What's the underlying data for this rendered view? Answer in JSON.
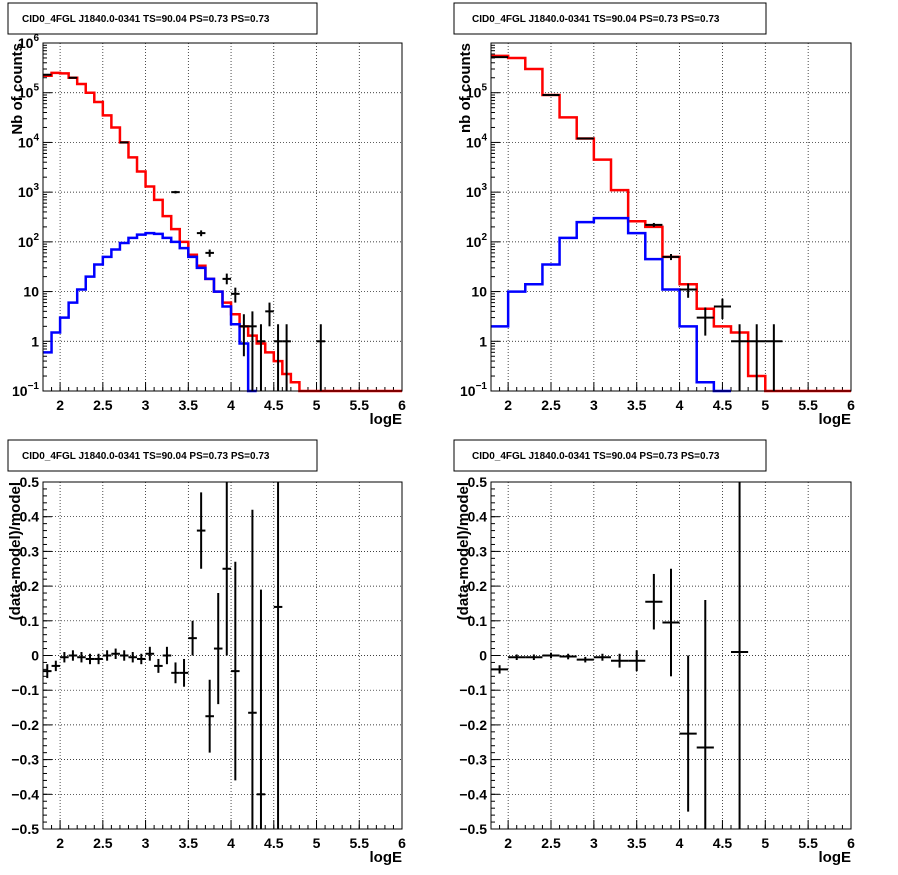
{
  "chart_data": [
    {
      "type": "line",
      "title": "CID0_4FGL J1840.0-0341 TS=90.04 PS=0.73 PS=0.73",
      "xlabel": "logE",
      "ylabel": "Nb of counts",
      "xlim": [
        1.8,
        6
      ],
      "ylim": [
        0.1,
        1000000
      ],
      "yscale": "log",
      "grid": true,
      "xticks": [
        "2",
        "2.5",
        "3",
        "3.5",
        "4",
        "4.5",
        "5",
        "5.5",
        "6"
      ],
      "yticks": [
        {
          "v": 0.1,
          "m": "10",
          "e": "−1"
        },
        {
          "v": 1,
          "m": "1",
          "e": ""
        },
        {
          "v": 10,
          "m": "10",
          "e": ""
        },
        {
          "v": 100,
          "m": "10",
          "e": "2"
        },
        {
          "v": 1000,
          "m": "10",
          "e": "3"
        },
        {
          "v": 10000,
          "m": "10",
          "e": "4"
        },
        {
          "v": 100000,
          "m": "10",
          "e": "5"
        },
        {
          "v": 1000000,
          "m": "10",
          "e": "6"
        }
      ],
      "bin_width": 0.1,
      "series": [
        {
          "color": "#ff0000",
          "style": "step",
          "x": [
            1.8,
            1.9,
            2.0,
            2.1,
            2.2,
            2.3,
            2.4,
            2.5,
            2.6,
            2.7,
            2.8,
            2.9,
            3.0,
            3.1,
            3.2,
            3.3,
            3.4,
            3.5,
            3.6,
            3.7,
            3.8,
            3.9,
            4.0,
            4.1,
            4.2,
            4.3,
            4.4,
            4.5,
            4.6,
            4.7,
            4.8,
            4.9,
            5.0,
            5.1,
            5.2,
            5.3,
            5.4,
            5.5,
            5.6,
            5.7,
            5.8,
            5.9
          ],
          "values": [
            220000,
            250000,
            245000,
            200000,
            150000,
            100000,
            65000,
            35000,
            20000,
            10000,
            5000,
            2600,
            1300,
            700,
            330,
            180,
            100,
            55,
            33,
            18,
            10,
            6,
            3.5,
            2,
            1.3,
            0.9,
            0.6,
            0.4,
            0.22,
            0.15,
            0.1,
            0.1,
            0.1,
            0.1,
            0.1,
            0.1,
            0.1,
            0.1,
            0.1,
            0.1,
            0.1,
            0.1
          ]
        },
        {
          "color": "#0000ff",
          "style": "step",
          "x": [
            1.8,
            1.9,
            2.0,
            2.1,
            2.2,
            2.3,
            2.4,
            2.5,
            2.6,
            2.7,
            2.8,
            2.9,
            3.0,
            3.1,
            3.2,
            3.3,
            3.4,
            3.5,
            3.6,
            3.7,
            3.8,
            3.9,
            4.0,
            4.1,
            4.2
          ],
          "values": [
            0.6,
            1.5,
            3,
            6,
            11,
            20,
            35,
            50,
            70,
            95,
            120,
            140,
            150,
            145,
            120,
            100,
            75,
            50,
            30,
            18,
            10,
            5,
            2.2,
            0.9,
            0.1
          ]
        },
        {
          "color": "#000000",
          "style": "errorbar",
          "points": [
            {
              "x": 1.85,
              "y": 230000,
              "lo": 229000,
              "hi": 231000
            },
            {
              "x": 2.15,
              "y": 200000,
              "lo": 199000,
              "hi": 201000
            },
            {
              "x": 2.75,
              "y": 10000,
              "lo": 9800,
              "hi": 10200
            },
            {
              "x": 3.35,
              "y": 1000,
              "lo": 940,
              "hi": 1060
            },
            {
              "x": 3.65,
              "y": 150,
              "lo": 130,
              "hi": 170
            },
            {
              "x": 3.75,
              "y": 60,
              "lo": 50,
              "hi": 70
            },
            {
              "x": 3.95,
              "y": 18,
              "lo": 14,
              "hi": 23
            },
            {
              "x": 4.05,
              "y": 9,
              "lo": 6,
              "hi": 12
            },
            {
              "x": 4.15,
              "y": 2,
              "lo": 0.5,
              "hi": 3.5
            },
            {
              "x": 4.25,
              "y": 2,
              "lo": 0.1,
              "hi": 4
            },
            {
              "x": 4.35,
              "y": 1,
              "lo": 0.1,
              "hi": 2.2
            },
            {
              "x": 4.45,
              "y": 4,
              "lo": 2,
              "hi": 6
            },
            {
              "x": 4.55,
              "y": 1,
              "lo": 0.1,
              "hi": 2.2
            },
            {
              "x": 4.65,
              "y": 1,
              "lo": 0.1,
              "hi": 2.2
            },
            {
              "x": 5.05,
              "y": 1,
              "lo": 0.1,
              "hi": 2.2
            }
          ]
        }
      ]
    },
    {
      "type": "line",
      "title": "CID0_4FGL J1840.0-0341 TS=90.04 PS=0.73 PS=0.73",
      "xlabel": "logE",
      "ylabel": "nb of counts",
      "xlim": [
        1.8,
        6
      ],
      "ylim": [
        0.1,
        1000000
      ],
      "yscale": "log",
      "grid": true,
      "xticks": [
        "2",
        "2.5",
        "3",
        "3.5",
        "4",
        "4.5",
        "5",
        "5.5",
        "6"
      ],
      "yticks": [
        {
          "v": 0.1,
          "m": "10",
          "e": "−1"
        },
        {
          "v": 1,
          "m": "1",
          "e": ""
        },
        {
          "v": 10,
          "m": "10",
          "e": ""
        },
        {
          "v": 100,
          "m": "10",
          "e": "2"
        },
        {
          "v": 1000,
          "m": "10",
          "e": "3"
        },
        {
          "v": 10000,
          "m": "10",
          "e": "4"
        },
        {
          "v": 100000,
          "m": "10",
          "e": "5"
        }
      ],
      "bin_width": 0.2,
      "series": [
        {
          "color": "#ff0000",
          "style": "step",
          "x": [
            1.8,
            2.0,
            2.2,
            2.4,
            2.6,
            2.8,
            3.0,
            3.2,
            3.4,
            3.6,
            3.8,
            4.0,
            4.2,
            4.4,
            4.6,
            4.8,
            5.0,
            5.2,
            5.4,
            5.6,
            5.8
          ],
          "values": [
            550000,
            500000,
            300000,
            90000,
            32000,
            12000,
            4500,
            1100,
            260,
            200,
            50,
            14,
            4.5,
            2,
            1.5,
            0.2,
            0.1,
            0.1,
            0.1,
            0.1,
            0.1
          ]
        },
        {
          "color": "#0000ff",
          "style": "step",
          "x": [
            1.8,
            2.0,
            2.2,
            2.4,
            2.6,
            2.8,
            3.0,
            3.2,
            3.4,
            3.6,
            3.8,
            4.0,
            4.2,
            4.4
          ],
          "values": [
            2,
            10,
            14,
            35,
            120,
            250,
            300,
            300,
            150,
            45,
            11,
            2,
            0.15,
            0.1
          ]
        },
        {
          "color": "#000000",
          "style": "errorbar",
          "points": [
            {
              "x": 1.9,
              "y": 520000,
              "lo": 518000,
              "hi": 522000
            },
            {
              "x": 2.5,
              "y": 90000,
              "lo": 89000,
              "hi": 91000
            },
            {
              "x": 2.9,
              "y": 12000,
              "lo": 11800,
              "hi": 12200
            },
            {
              "x": 3.7,
              "y": 220,
              "lo": 200,
              "hi": 240
            },
            {
              "x": 3.9,
              "y": 50,
              "lo": 43,
              "hi": 57
            },
            {
              "x": 4.1,
              "y": 11,
              "lo": 7.5,
              "hi": 14.5
            },
            {
              "x": 4.3,
              "y": 3,
              "lo": 1.3,
              "hi": 4.8
            },
            {
              "x": 4.5,
              "y": 5,
              "lo": 2.8,
              "hi": 7.2
            },
            {
              "x": 4.7,
              "y": 1,
              "lo": 0.1,
              "hi": 2.2
            },
            {
              "x": 4.9,
              "y": 1,
              "lo": 0.1,
              "hi": 2.2
            },
            {
              "x": 5.1,
              "y": 1,
              "lo": 0.1,
              "hi": 2.2
            }
          ]
        }
      ]
    },
    {
      "type": "scatter",
      "title": "CID0_4FGL J1840.0-0341 TS=90.04 PS=0.73 PS=0.73",
      "xlabel": "logE",
      "ylabel": "(data-model)/model",
      "xlim": [
        1.8,
        6
      ],
      "ylim": [
        -0.5,
        0.5
      ],
      "grid": true,
      "xticks": [
        "2",
        "2.5",
        "3",
        "3.5",
        "4",
        "4.5",
        "5",
        "5.5",
        "6"
      ],
      "yticks": [
        "0.5",
        "0.4",
        "0.3",
        "0.2",
        "0.1",
        "0",
        "−0.1",
        "−0.2",
        "−0.3",
        "−0.4",
        "−0.5"
      ],
      "bin_width": 0.1,
      "series": [
        {
          "color": "#000000",
          "style": "errorbar",
          "points": [
            {
              "x": 1.85,
              "y": -0.045,
              "lo": -0.065,
              "hi": -0.025
            },
            {
              "x": 1.95,
              "y": -0.03,
              "lo": -0.045,
              "hi": -0.015
            },
            {
              "x": 2.05,
              "y": -0.005,
              "lo": -0.02,
              "hi": 0.01
            },
            {
              "x": 2.15,
              "y": 0.0,
              "lo": -0.015,
              "hi": 0.015
            },
            {
              "x": 2.25,
              "y": -0.005,
              "lo": -0.02,
              "hi": 0.01
            },
            {
              "x": 2.35,
              "y": -0.01,
              "lo": -0.025,
              "hi": 0.005
            },
            {
              "x": 2.45,
              "y": -0.01,
              "lo": -0.025,
              "hi": 0.005
            },
            {
              "x": 2.55,
              "y": 0.0,
              "lo": -0.015,
              "hi": 0.015
            },
            {
              "x": 2.65,
              "y": 0.005,
              "lo": -0.01,
              "hi": 0.02
            },
            {
              "x": 2.75,
              "y": 0.0,
              "lo": -0.015,
              "hi": 0.015
            },
            {
              "x": 2.85,
              "y": -0.005,
              "lo": -0.02,
              "hi": 0.01
            },
            {
              "x": 2.95,
              "y": -0.01,
              "lo": -0.025,
              "hi": 0.005
            },
            {
              "x": 3.05,
              "y": 0.005,
              "lo": -0.015,
              "hi": 0.025
            },
            {
              "x": 3.15,
              "y": -0.03,
              "lo": -0.05,
              "hi": -0.01
            },
            {
              "x": 3.25,
              "y": 0.0,
              "lo": -0.025,
              "hi": 0.025
            },
            {
              "x": 3.35,
              "y": -0.05,
              "lo": -0.08,
              "hi": -0.02
            },
            {
              "x": 3.45,
              "y": -0.05,
              "lo": -0.09,
              "hi": -0.01
            },
            {
              "x": 3.55,
              "y": 0.05,
              "lo": 0.0,
              "hi": 0.1
            },
            {
              "x": 3.65,
              "y": 0.36,
              "lo": 0.25,
              "hi": 0.47
            },
            {
              "x": 3.75,
              "y": -0.175,
              "lo": -0.28,
              "hi": -0.07
            },
            {
              "x": 3.85,
              "y": 0.02,
              "lo": -0.14,
              "hi": 0.18
            },
            {
              "x": 3.95,
              "y": 0.25,
              "lo": 0.0,
              "hi": 0.5
            },
            {
              "x": 4.05,
              "y": -0.045,
              "lo": -0.36,
              "hi": 0.27
            },
            {
              "x": 4.25,
              "y": -0.165,
              "lo": -0.5,
              "hi": 0.42
            },
            {
              "x": 4.35,
              "y": -0.4,
              "lo": -0.5,
              "hi": 0.19
            },
            {
              "x": 4.55,
              "y": 0.14,
              "lo": -0.5,
              "hi": 0.5
            }
          ]
        }
      ]
    },
    {
      "type": "scatter",
      "title": "CID0_4FGL J1840.0-0341 TS=90.04 PS=0.73 PS=0.73",
      "xlabel": "logE",
      "ylabel": "(data-model)/model",
      "xlim": [
        1.8,
        6
      ],
      "ylim": [
        -0.5,
        0.5
      ],
      "grid": true,
      "xticks": [
        "2",
        "2.5",
        "3",
        "3.5",
        "4",
        "4.5",
        "5",
        "5.5",
        "6"
      ],
      "yticks": [
        "0.5",
        "0.4",
        "0.3",
        "0.2",
        "0.1",
        "0",
        "−0.1",
        "−0.2",
        "−0.3",
        "−0.4",
        "−0.5"
      ],
      "bin_width": 0.2,
      "series": [
        {
          "color": "#000000",
          "style": "errorbar",
          "points": [
            {
              "x": 1.9,
              "y": -0.04,
              "lo": -0.052,
              "hi": -0.028
            },
            {
              "x": 2.1,
              "y": -0.005,
              "lo": -0.013,
              "hi": 0.003
            },
            {
              "x": 2.3,
              "y": -0.005,
              "lo": -0.013,
              "hi": 0.003
            },
            {
              "x": 2.5,
              "y": 0.0,
              "lo": -0.008,
              "hi": 0.008
            },
            {
              "x": 2.7,
              "y": -0.003,
              "lo": -0.011,
              "hi": 0.005
            },
            {
              "x": 2.9,
              "y": -0.012,
              "lo": -0.02,
              "hi": -0.004
            },
            {
              "x": 3.1,
              "y": -0.005,
              "lo": -0.015,
              "hi": 0.005
            },
            {
              "x": 3.3,
              "y": -0.015,
              "lo": -0.035,
              "hi": 0.005
            },
            {
              "x": 3.5,
              "y": -0.015,
              "lo": -0.045,
              "hi": 0.015
            },
            {
              "x": 3.7,
              "y": 0.155,
              "lo": 0.075,
              "hi": 0.235
            },
            {
              "x": 3.9,
              "y": 0.095,
              "lo": -0.06,
              "hi": 0.25
            },
            {
              "x": 4.1,
              "y": -0.225,
              "lo": -0.45,
              "hi": 0.0
            },
            {
              "x": 4.3,
              "y": -0.265,
              "lo": -0.5,
              "hi": 0.16
            },
            {
              "x": 4.7,
              "y": 0.01,
              "lo": -0.5,
              "hi": 0.5
            }
          ]
        }
      ]
    }
  ]
}
